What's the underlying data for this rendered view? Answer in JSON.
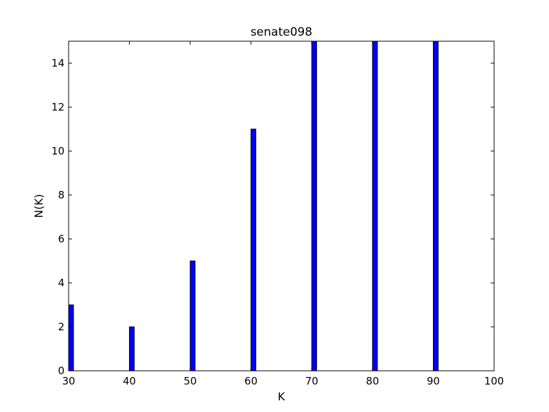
{
  "chart_data": {
    "type": "bar",
    "title": "senate098",
    "xlabel": "K",
    "ylabel": "N(K)",
    "x": [
      30,
      40,
      50,
      60,
      70,
      80,
      90
    ],
    "values": [
      3,
      2,
      5,
      11,
      15,
      15,
      15
    ],
    "bar_width": 0.8,
    "xlim": [
      30,
      100
    ],
    "ylim": [
      0,
      15
    ],
    "xticks": [
      30,
      40,
      50,
      60,
      70,
      80,
      90,
      100
    ],
    "yticks": [
      0,
      2,
      4,
      6,
      8,
      10,
      12,
      14
    ],
    "grid": false,
    "legend": false,
    "colors": {
      "bar_fill": "#0000ff",
      "bar_edge": "#000000",
      "axes": "#000000",
      "background": "#ffffff"
    }
  }
}
